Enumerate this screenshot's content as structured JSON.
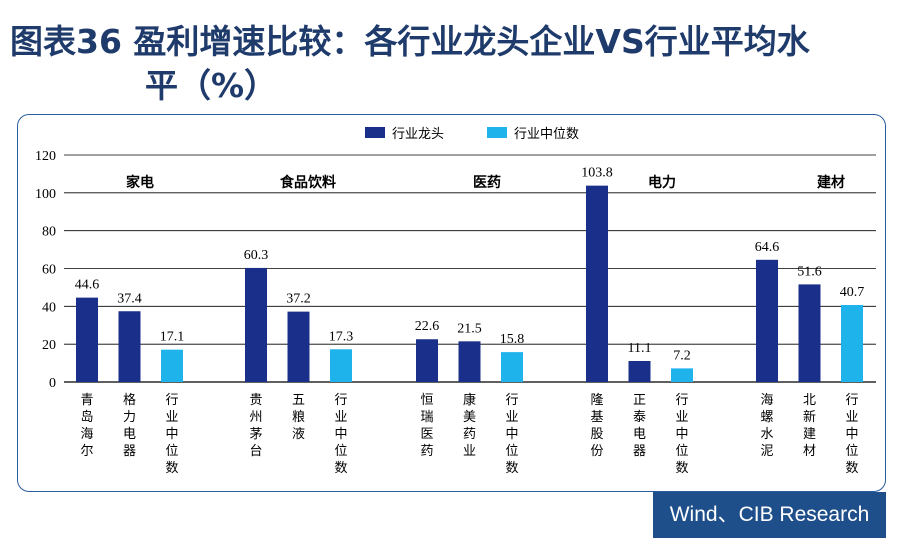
{
  "title": {
    "line1": "图表36  盈利增速比较：各行业龙头企业VS行业平均水",
    "line2": "平（%）"
  },
  "source": "Wind、CIB Research",
  "chart_data": {
    "type": "bar",
    "ylim": [
      0,
      120
    ],
    "yticks": [
      0,
      20,
      40,
      60,
      80,
      100,
      120
    ],
    "grid": true,
    "legend_position": "top",
    "legend": [
      {
        "name": "行业龙头",
        "color": "#1a2f8a"
      },
      {
        "name": "行业中位数",
        "color": "#1fb3ec"
      }
    ],
    "groups": [
      {
        "label": "家电",
        "bars": [
          {
            "category": "青岛海尔",
            "value": 44.6,
            "series": "行业龙头"
          },
          {
            "category": "格力电器",
            "value": 37.4,
            "series": "行业龙头"
          },
          {
            "category": "行业中位数",
            "value": 17.1,
            "series": "行业中位数"
          }
        ]
      },
      {
        "label": "食品饮料",
        "bars": [
          {
            "category": "贵州茅台",
            "value": 60.3,
            "series": "行业龙头"
          },
          {
            "category": "五粮液",
            "value": 37.2,
            "series": "行业龙头"
          },
          {
            "category": "行业中位数",
            "value": 17.3,
            "series": "行业中位数"
          }
        ]
      },
      {
        "label": "医药",
        "bars": [
          {
            "category": "恒瑞医药",
            "value": 22.6,
            "series": "行业龙头"
          },
          {
            "category": "康美药业",
            "value": 21.5,
            "series": "行业龙头"
          },
          {
            "category": "行业中位数",
            "value": 15.8,
            "series": "行业中位数"
          }
        ]
      },
      {
        "label": "电力",
        "bars": [
          {
            "category": "隆基股份",
            "value": 103.8,
            "series": "行业龙头"
          },
          {
            "category": "正泰电器",
            "value": 11.1,
            "series": "行业龙头"
          },
          {
            "category": "行业中位数",
            "value": 7.2,
            "series": "行业中位数"
          }
        ]
      },
      {
        "label": "建材",
        "bars": [
          {
            "category": "海螺水泥",
            "value": 64.6,
            "series": "行业龙头"
          },
          {
            "category": "北新建材",
            "value": 51.6,
            "series": "行业龙头"
          },
          {
            "category": "行业中位数",
            "value": 40.7,
            "series": "行业中位数"
          }
        ]
      }
    ]
  }
}
